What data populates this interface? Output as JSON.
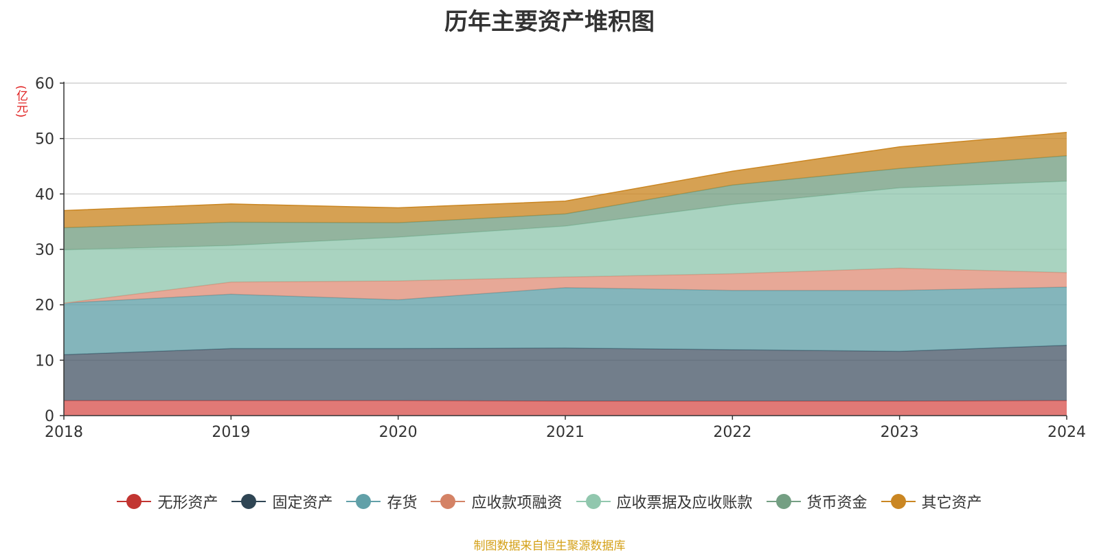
{
  "chart_data": {
    "type": "area",
    "stacked": true,
    "title": "历年主要资产堆积图",
    "unit": "(亿元)",
    "x": [
      "2018",
      "2019",
      "2020",
      "2021",
      "2022",
      "2023",
      "2024"
    ],
    "ylim": [
      0,
      60
    ],
    "yticks": [
      0,
      10,
      20,
      30,
      40,
      50,
      60
    ],
    "grid": true,
    "legend_position": "bottom",
    "series": [
      {
        "name": "无形资产",
        "color": "#d9534f",
        "legend_color": "#c23531",
        "values": [
          2.7,
          2.7,
          2.7,
          2.6,
          2.6,
          2.6,
          2.7
        ]
      },
      {
        "name": "固定资产",
        "color": "#4a5a6a",
        "legend_color": "#2f4554",
        "values": [
          8.3,
          9.4,
          9.4,
          9.6,
          9.3,
          9.0,
          10.0
        ]
      },
      {
        "name": "存货",
        "color": "#61a0a8",
        "legend_color": "#61a0a8",
        "values": [
          9.3,
          9.8,
          8.8,
          10.9,
          10.7,
          11.0,
          10.5
        ]
      },
      {
        "name": "应收款项融资",
        "color": "#e0907a",
        "legend_color": "#d48265",
        "values": [
          0.0,
          2.2,
          3.4,
          1.9,
          3.0,
          4.0,
          2.6
        ]
      },
      {
        "name": "应收票据及应收账款",
        "color": "#91c7ae",
        "legend_color": "#91c7ae",
        "values": [
          9.6,
          6.6,
          7.9,
          9.2,
          12.5,
          14.5,
          16.5
        ]
      },
      {
        "name": "货币资金",
        "color": "#749f83",
        "legend_color": "#749f83",
        "values": [
          4.0,
          4.2,
          2.6,
          2.2,
          3.5,
          3.5,
          4.6
        ]
      },
      {
        "name": "其它资产",
        "color": "#ca8622",
        "legend_color": "#ca8622",
        "values": [
          3.1,
          3.3,
          2.7,
          2.3,
          2.5,
          3.9,
          4.2
        ]
      }
    ]
  },
  "source_note": "制图数据来自恒生聚源数据库"
}
